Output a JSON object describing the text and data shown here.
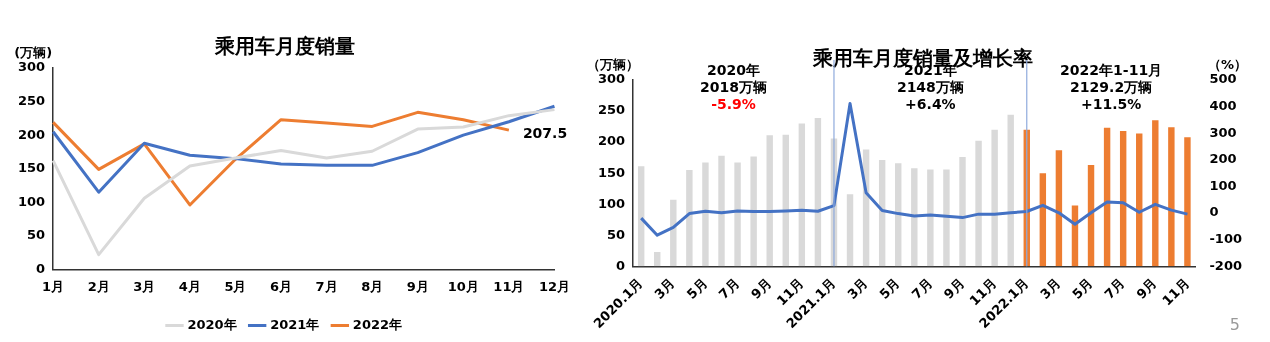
{
  "chart_data": [
    {
      "type": "line",
      "title": "乘用车月度销量",
      "ylabel": "(万辆)",
      "categories": [
        "1月",
        "2月",
        "3月",
        "4月",
        "5月",
        "6月",
        "7月",
        "8月",
        "9月",
        "10月",
        "11月",
        "12月"
      ],
      "series": [
        {
          "name": "2020年",
          "color": "#d9d9d9",
          "values": [
            162,
            22,
            106,
            154,
            166,
            177,
            166,
            176,
            209,
            212,
            229,
            238
          ]
        },
        {
          "name": "2021年",
          "color": "#4472c4",
          "values": [
            205,
            115,
            188,
            170,
            165,
            157,
            155,
            155,
            174,
            200,
            220,
            243
          ]
        },
        {
          "name": "2022年",
          "color": "#ed7d31",
          "values": [
            219,
            149,
            187,
            96,
            164,
            223,
            218,
            213,
            234,
            223,
            207.5,
            null
          ],
          "value_labels": [
            null,
            null,
            null,
            null,
            null,
            null,
            null,
            null,
            null,
            null,
            "207.5",
            null
          ]
        }
      ],
      "ylim": [
        0,
        300
      ],
      "yticks": [
        0,
        50,
        100,
        150,
        200,
        250,
        300
      ],
      "legend": "bottom",
      "marker": "none"
    },
    {
      "type": "bar",
      "title": "乘用车月度销量及增长率",
      "ylabel": "（万辆）",
      "y2label": "（%）",
      "categories": [
        "2020.1月",
        null,
        "3月",
        null,
        "5月",
        null,
        "7月",
        null,
        "9月",
        null,
        "11月",
        null,
        "2021.1月",
        null,
        "3月",
        null,
        "5月",
        null,
        "7月",
        null,
        "9月",
        null,
        "11月",
        null,
        "2022.1月",
        null,
        "3月",
        null,
        "5月",
        null,
        "7月",
        null,
        "9月",
        null,
        "11月"
      ],
      "series": [
        {
          "type": "bar",
          "colors": [
            "#d9d9d9",
            "#d9d9d9",
            "#d9d9d9",
            "#d9d9d9",
            "#d9d9d9",
            "#d9d9d9",
            "#d9d9d9",
            "#d9d9d9",
            "#d9d9d9",
            "#d9d9d9",
            "#d9d9d9",
            "#d9d9d9",
            "#d9d9d9",
            "#d9d9d9",
            "#d9d9d9",
            "#d9d9d9",
            "#d9d9d9",
            "#d9d9d9",
            "#d9d9d9",
            "#d9d9d9",
            "#d9d9d9",
            "#d9d9d9",
            "#d9d9d9",
            "#d9d9d9",
            "#ed7d31",
            "#ed7d31",
            "#ed7d31",
            "#ed7d31",
            "#ed7d31",
            "#ed7d31",
            "#ed7d31",
            "#ed7d31",
            "#ed7d31",
            "#ed7d31",
            "#ed7d31"
          ],
          "values": [
            161,
            23,
            107,
            155,
            167,
            178,
            167,
            177,
            211,
            212,
            230,
            239,
            206,
            116,
            188,
            171,
            166,
            158,
            156,
            156,
            176,
            202,
            220,
            244,
            220,
            150,
            187,
            98,
            163,
            223,
            218,
            214,
            235,
            224,
            208
          ]
        },
        {
          "type": "line",
          "axis": "y2",
          "color": "#4472c4",
          "values": [
            -19,
            -83,
            -54,
            -2,
            7,
            1,
            8,
            6,
            6,
            8,
            11,
            7,
            28,
            412,
            76,
            10,
            -2,
            -11,
            -7,
            -12,
            -17,
            -4,
            -4,
            1,
            6,
            29,
            1,
            -42,
            1,
            42,
            39,
            3,
            33,
            11,
            -4
          ]
        }
      ],
      "ylim": [
        0,
        300
      ],
      "yticks": [
        0,
        50,
        100,
        150,
        200,
        250,
        300
      ],
      "y2lim": [
        -200,
        500
      ],
      "y2ticks": [
        -200,
        -100,
        0,
        100,
        200,
        300,
        400,
        500
      ],
      "ref_lines": [
        {
          "axis": "x",
          "value": "2021.1月",
          "color": "#8faadc"
        },
        {
          "axis": "x",
          "value": "2022.1月",
          "color": "#8faadc"
        }
      ],
      "annotations": [
        "2020年\n2018万辆\n-5.9%",
        "2021年\n2148万辆\n+6.4%",
        "2022年1-11月\n2129.2万辆\n+11.5%",
        "5"
      ],
      "marker": "none"
    }
  ]
}
